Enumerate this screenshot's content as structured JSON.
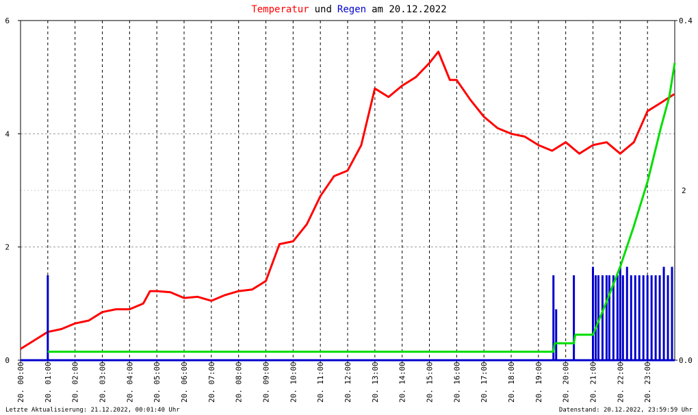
{
  "chart_data": {
    "type": "line",
    "title_parts": [
      "Temperatur",
      "und",
      "Regen",
      "am 20.12.2022"
    ],
    "footer_left": "Letzte Aktualisierung: 21.12.2022, 00:01:40 Uhr",
    "footer_right": "Datenstand: 20.12.2022, 23:59:59 Uhr",
    "xlim": [
      0,
      24
    ],
    "xticks": [
      {
        "value": 0,
        "label": "20. 00:00"
      },
      {
        "value": 1,
        "label": "20. 01:00"
      },
      {
        "value": 2,
        "label": "20. 02:00"
      },
      {
        "value": 3,
        "label": "20. 03:00"
      },
      {
        "value": 4,
        "label": "20. 04:00"
      },
      {
        "value": 5,
        "label": "20. 05:00"
      },
      {
        "value": 6,
        "label": "20. 06:00"
      },
      {
        "value": 7,
        "label": "20. 07:00"
      },
      {
        "value": 8,
        "label": "20. 08:00"
      },
      {
        "value": 9,
        "label": "20. 09:00"
      },
      {
        "value": 10,
        "label": "20. 10:00"
      },
      {
        "value": 11,
        "label": "20. 11:00"
      },
      {
        "value": 12,
        "label": "20. 12:00"
      },
      {
        "value": 13,
        "label": "20. 13:00"
      },
      {
        "value": 14,
        "label": "20. 14:00"
      },
      {
        "value": 15,
        "label": "20. 15:00"
      },
      {
        "value": 16,
        "label": "20. 16:00"
      },
      {
        "value": 17,
        "label": "20. 17:00"
      },
      {
        "value": 18,
        "label": "20. 18:00"
      },
      {
        "value": 19,
        "label": "20. 19:00"
      },
      {
        "value": 20,
        "label": "20. 20:00"
      },
      {
        "value": 21,
        "label": "20. 21:00"
      },
      {
        "value": 22,
        "label": "20. 22:00"
      },
      {
        "value": 23,
        "label": "20. 23:00"
      }
    ],
    "ylim": [
      0,
      6
    ],
    "yticks": [
      0,
      2,
      4,
      6
    ],
    "y2lim": [
      0,
      0.4
    ],
    "y2ticks": [
      {
        "value": 0,
        "label": "0.0"
      },
      0.4
    ],
    "y3lim": [
      0,
      4
    ],
    "y3ticks": [
      2
    ],
    "y3color": "#00dd00",
    "grid": true,
    "series": [
      {
        "name": "Temperatur",
        "color": "#ff0000",
        "x": [
          0,
          0.5,
          1,
          1.5,
          2,
          2.5,
          3,
          3.5,
          4,
          4.5,
          4.75,
          5,
          5.5,
          6,
          6.5,
          7,
          7.5,
          8,
          8.5,
          9,
          9.5,
          10,
          10.5,
          11,
          11.5,
          12,
          12.5,
          13,
          13.5,
          14,
          14.5,
          15,
          15.33,
          15.75,
          16,
          16.5,
          17,
          17.5,
          18,
          18.5,
          19,
          19.5,
          20,
          20.5,
          21,
          21.5,
          22,
          22.5,
          23,
          23.5,
          23.98
        ],
        "values": [
          0.2,
          0.35,
          0.5,
          0.55,
          0.65,
          0.7,
          0.85,
          0.9,
          0.9,
          1.0,
          1.22,
          1.22,
          1.2,
          1.1,
          1.12,
          1.05,
          1.15,
          1.22,
          1.25,
          1.4,
          2.05,
          2.1,
          2.4,
          2.9,
          3.25,
          3.35,
          3.8,
          4.8,
          4.65,
          4.85,
          5.0,
          5.25,
          5.45,
          4.95,
          4.95,
          4.6,
          4.3,
          4.1,
          4.0,
          3.95,
          3.8,
          3.7,
          3.85,
          3.65,
          3.8,
          3.85,
          3.65,
          3.85,
          4.4,
          4.55,
          4.7
        ]
      },
      {
        "name": "Regen",
        "color": "#0000cc",
        "axis": "y2",
        "kind": "bar",
        "x": [
          1.0,
          19.55,
          19.65,
          20.3,
          21.0,
          21.1,
          21.2,
          21.35,
          21.5,
          21.6,
          21.75,
          21.9,
          22.0,
          22.1,
          22.25,
          22.4,
          22.55,
          22.7,
          22.85,
          23.0,
          23.15,
          23.3,
          23.45,
          23.6,
          23.75,
          23.9
        ],
        "values": [
          0.1,
          0.1,
          0.06,
          0.1,
          0.11,
          0.1,
          0.1,
          0.1,
          0.1,
          0.1,
          0.1,
          0.1,
          0.11,
          0.1,
          0.11,
          0.1,
          0.1,
          0.1,
          0.1,
          0.1,
          0.1,
          0.1,
          0.1,
          0.11,
          0.1,
          0.11
        ]
      },
      {
        "color": "#00dd00",
        "axis": "y3",
        "x": [
          1.0,
          19.55,
          19.6,
          20.3,
          20.35,
          21.0,
          21.5,
          22.0,
          22.5,
          23.0,
          23.5,
          23.8,
          24.0
        ],
        "values": [
          0.1,
          0.1,
          0.2,
          0.2,
          0.3,
          0.3,
          0.69,
          1.1,
          1.58,
          2.1,
          2.75,
          3.1,
          3.5
        ]
      }
    ]
  }
}
